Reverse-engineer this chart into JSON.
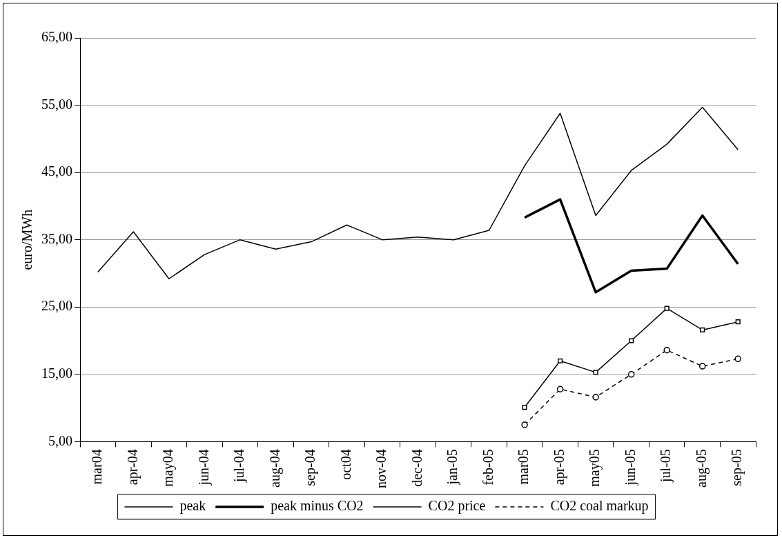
{
  "chart_data": {
    "type": "line",
    "ylabel": "euro/MWh",
    "categories": [
      "mar04",
      "apr-04",
      "may04",
      "jun-04",
      "jul-04",
      "aug-04",
      "sep-04",
      "oct04",
      "nov-04",
      "dec-04",
      "jan-05",
      "feb-05",
      "mar05",
      "apr-05",
      "may05",
      "jun-05",
      "jul-05",
      "aug-05",
      "sep-05"
    ],
    "series": [
      {
        "name": "peak",
        "color": "#000000",
        "marker": "none",
        "line_style": "solid",
        "values": [
          30.2,
          36.2,
          29.2,
          32.8,
          35.0,
          33.6,
          34.7,
          37.2,
          35.0,
          35.4,
          35.0,
          36.4,
          46.0,
          53.8,
          38.6,
          45.3,
          49.2,
          54.7,
          48.4
        ]
      },
      {
        "name": "peak minus CO2",
        "color": "#000000",
        "marker": "none",
        "line_style": "solid",
        "values": [
          null,
          null,
          null,
          null,
          null,
          null,
          null,
          null,
          null,
          null,
          null,
          null,
          38.3,
          41.0,
          27.2,
          30.4,
          30.7,
          38.6,
          31.4
        ]
      },
      {
        "name": "CO2 price",
        "color": "#000000",
        "marker": "square",
        "line_style": "solid",
        "values": [
          null,
          null,
          null,
          null,
          null,
          null,
          null,
          null,
          null,
          null,
          null,
          null,
          10.1,
          17.0,
          15.3,
          20.0,
          24.8,
          21.6,
          22.8
        ]
      },
      {
        "name": "CO2 coal markup",
        "color": "#000000",
        "marker": "circle",
        "line_style": "dashed",
        "values": [
          null,
          null,
          null,
          null,
          null,
          null,
          null,
          null,
          null,
          null,
          null,
          null,
          7.5,
          12.8,
          11.6,
          15.0,
          18.6,
          16.2,
          17.3
        ]
      }
    ],
    "ylim": [
      5,
      65
    ],
    "yticks": [
      {
        "value": 5,
        "label": "5,00"
      },
      {
        "value": 15,
        "label": "15,00"
      },
      {
        "value": 25,
        "label": "25,00"
      },
      {
        "value": 35,
        "label": "35,00"
      },
      {
        "value": 45,
        "label": "45,00"
      },
      {
        "value": 55,
        "label": "55,00"
      },
      {
        "value": 65,
        "label": "65,00"
      }
    ],
    "grid": "y",
    "legend": "bottom"
  }
}
